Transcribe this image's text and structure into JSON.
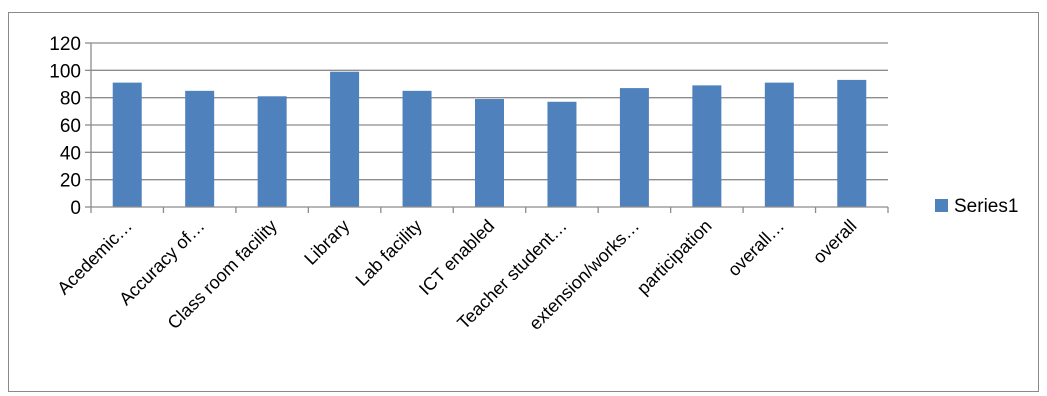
{
  "chart_data": {
    "type": "bar",
    "title": "",
    "xlabel": "",
    "ylabel": "",
    "ylim": [
      0,
      120
    ],
    "yticks": [
      0,
      20,
      40,
      60,
      80,
      100,
      120
    ],
    "grid": true,
    "legend_position": "right",
    "categories": [
      "Acedemic…",
      "Accuracy of…",
      "Class room facility",
      "Library",
      "Lab facility",
      "ICT enabled",
      "Teacher student…",
      "extension/works…",
      "participation",
      "overall…",
      "overall"
    ],
    "series": [
      {
        "name": "Series1",
        "color": "#4f81bd",
        "values": [
          91,
          85,
          81,
          99,
          85,
          79,
          77,
          87,
          89,
          91,
          93
        ]
      }
    ]
  }
}
